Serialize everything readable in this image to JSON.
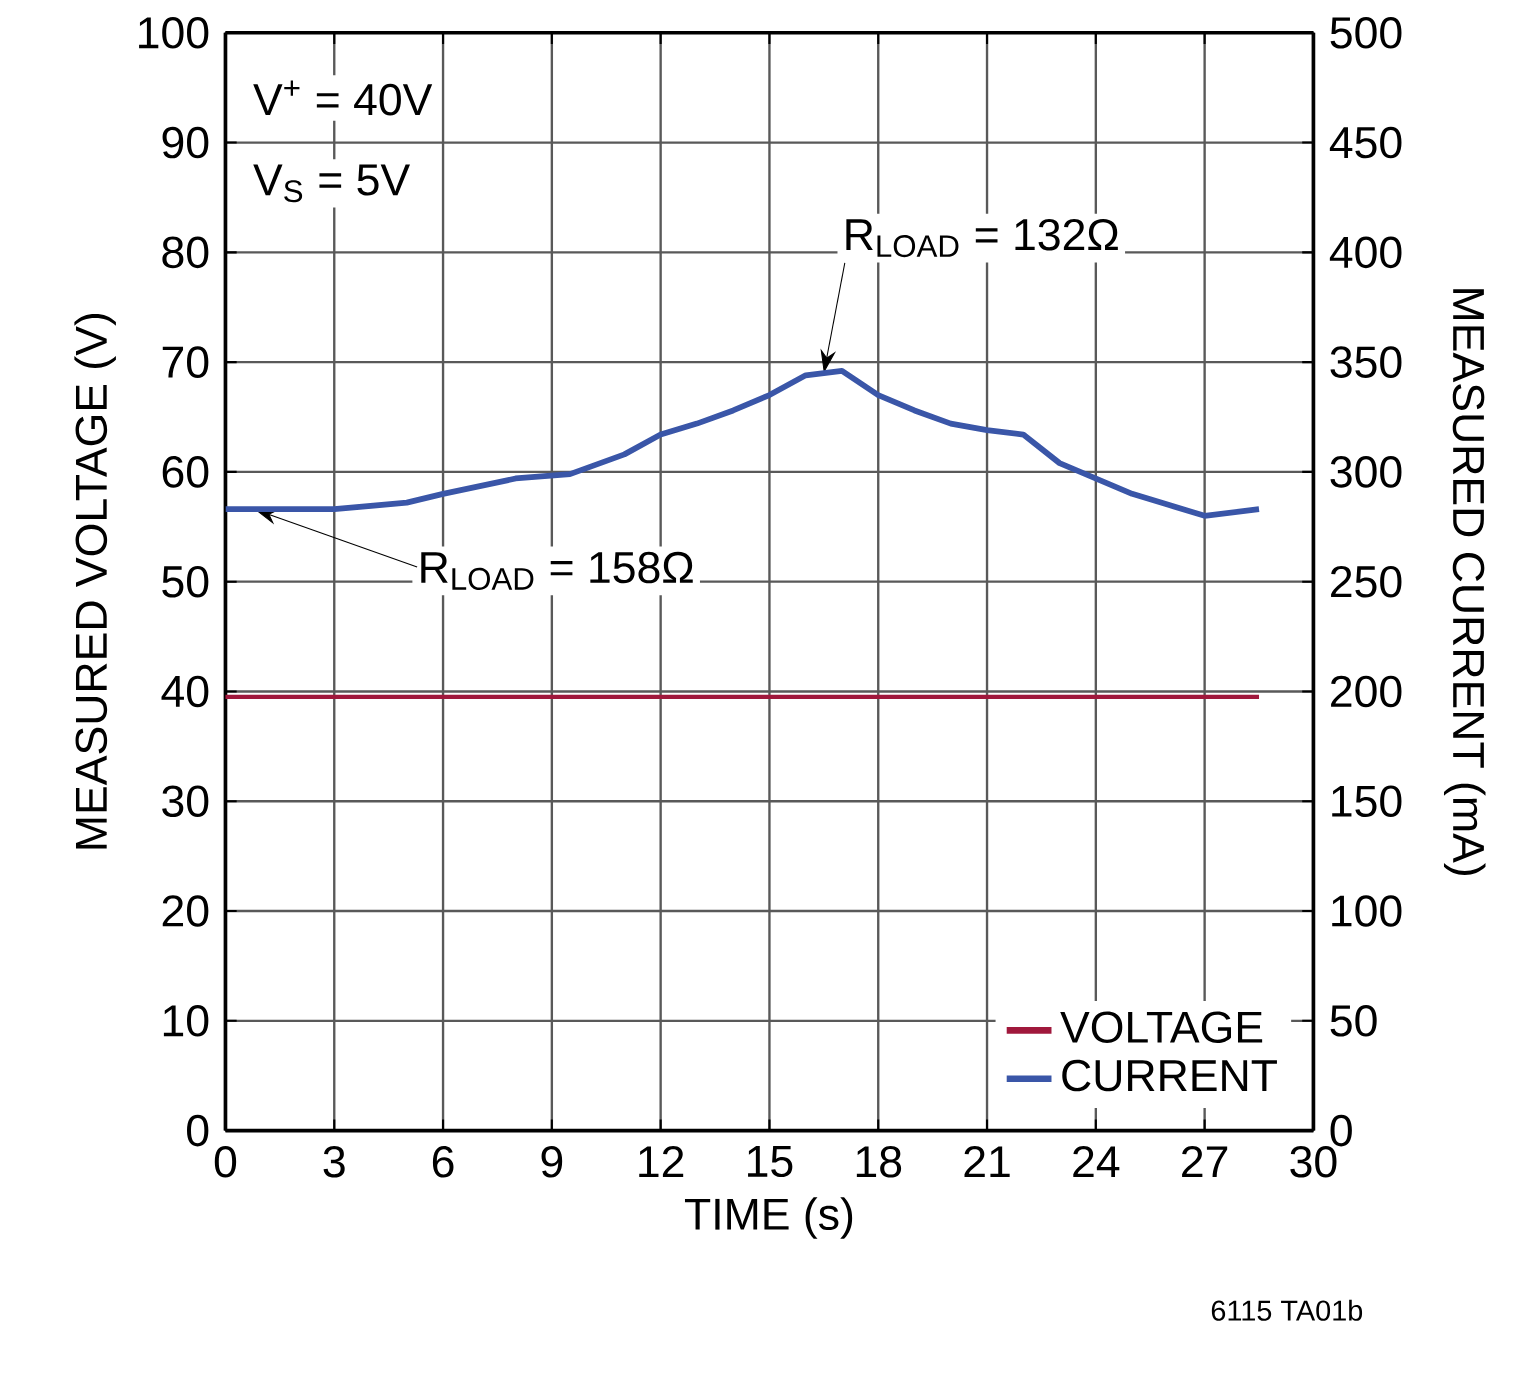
{
  "chart_data": {
    "type": "line",
    "xlabel": "TIME (s)",
    "ylabel": "MEASURED VOLTAGE (V)",
    "y2label": "MEASURED CURRENT (mA)",
    "x": [
      0,
      3,
      5,
      6,
      8,
      9.5,
      11,
      12,
      13,
      14,
      15,
      16,
      17,
      18,
      19,
      20,
      21,
      22,
      23,
      24,
      25,
      26,
      27,
      28.5
    ],
    "series": [
      {
        "name": "VOLTAGE",
        "color": "#a0183c",
        "values": [
          39.5,
          39.5,
          39.5,
          39.5,
          39.5,
          39.5,
          39.5,
          39.5,
          39.5,
          39.5,
          39.5,
          39.5,
          39.5,
          39.5,
          39.5,
          39.5,
          39.5,
          39.5,
          39.5,
          39.5,
          39.5,
          39.5,
          39.5,
          39.5
        ]
      },
      {
        "name": "CURRENT",
        "color": "#3a56a8",
        "axis": "y2",
        "values": [
          283,
          283,
          286,
          290,
          297,
          299,
          308,
          317,
          322,
          328,
          335,
          344,
          346,
          335,
          328,
          322,
          319,
          317,
          304,
          297,
          290,
          285,
          280,
          283
        ]
      }
    ],
    "xlim": [
      0,
      30
    ],
    "xticks": [
      0,
      3,
      6,
      9,
      12,
      15,
      18,
      21,
      24,
      27,
      30
    ],
    "ylim": [
      0,
      100
    ],
    "yticks": [
      0,
      10,
      20,
      30,
      40,
      50,
      60,
      70,
      80,
      90,
      100
    ],
    "y2lim": [
      0,
      500
    ],
    "y2ticks": [
      0,
      50,
      100,
      150,
      200,
      250,
      300,
      350,
      400,
      450,
      500
    ],
    "grid": true,
    "legend": "bottom right",
    "marker": "none",
    "line_style": "solid",
    "annotations": [
      "V$^{+}$ = 40V",
      "V$_{S}$ = 5V",
      {
        "text": "R$_{LOAD}$ = 132Ω",
        "x": 16.5,
        "y": 69
      },
      {
        "text": "R$_{LOAD}$ = 158Ω",
        "x": 0.8,
        "y": 56.6
      },
      "6115 TA01b"
    ]
  }
}
